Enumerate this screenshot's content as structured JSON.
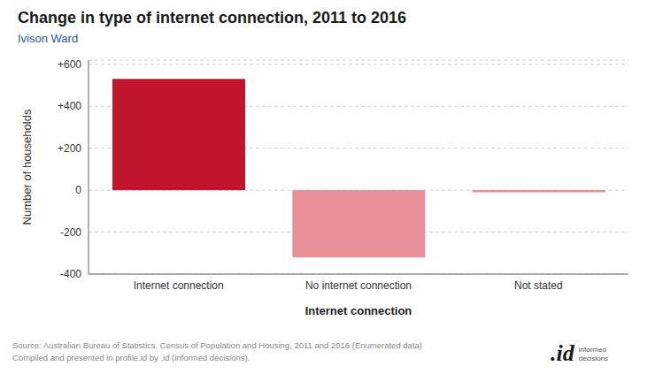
{
  "chart_data": {
    "type": "bar",
    "title": "Change in type of internet connection, 2011 to 2016",
    "subtitle": "Ivison Ward",
    "categories": [
      "Internet connection",
      "No internet connection",
      "Not stated"
    ],
    "values": [
      530,
      -320,
      -10
    ],
    "colors": [
      "#c0152b",
      "#e8909a",
      "#e8909a"
    ],
    "xlabel": "Internet connection",
    "ylabel": "Number of households",
    "ylim": [
      -400,
      620
    ],
    "yticks": [
      -400,
      -200,
      0,
      {
        "value": 200,
        "label": "+200"
      },
      {
        "value": 400,
        "label": "+400"
      },
      {
        "value": 600,
        "label": "+600"
      }
    ],
    "grid": true,
    "annotations": [
      "Source: Australian Bureau of Statistics, Census of Population and Housing, 2011 and 2016 (Enumerated data)\nCompiled and presented in profile.id by .id (informed decisions).",
      ".id",
      "informed\ndecisions"
    ]
  }
}
